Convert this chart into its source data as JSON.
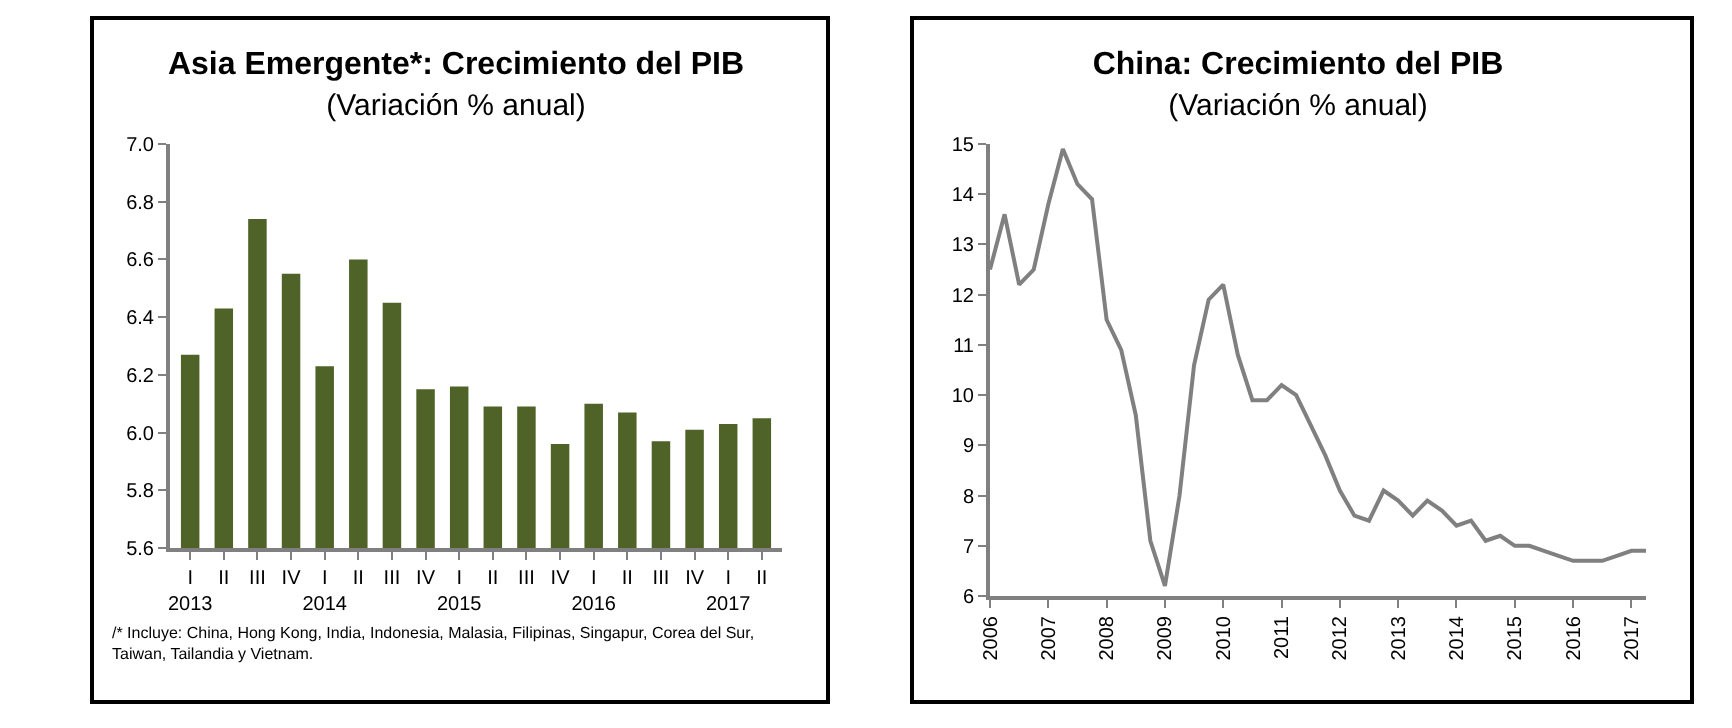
{
  "chart_data": [
    {
      "type": "bar",
      "title": "Asia Emergente*: Crecimiento del PIB",
      "subtitle": "(Variación % anual)",
      "categories": [
        "I\n2013",
        "II",
        "III",
        "IV",
        "I\n2014",
        "II",
        "III",
        "IV",
        "I\n2015",
        "II",
        "III",
        "IV",
        "I\n2016",
        "II",
        "III",
        "IV",
        "I\n2017",
        "II"
      ],
      "values": [
        6.27,
        6.43,
        6.74,
        6.55,
        6.23,
        6.6,
        6.45,
        6.15,
        6.16,
        6.09,
        6.09,
        5.96,
        6.1,
        6.07,
        5.97,
        6.01,
        6.03,
        6.05
      ],
      "color": "#4f6228",
      "ylim": [
        5.6,
        7.0
      ],
      "yticks": [
        5.6,
        5.8,
        {
          "value": 6,
          "label": "6.0"
        },
        6.2,
        6.4,
        6.6,
        6.8,
        {
          "value": 7,
          "label": "7.0"
        }
      ],
      "grid": false,
      "legend": false,
      "annotations": [
        "/* Incluye: China, Hong Kong, India, Indonesia, Malasia, Filipinas, Singapur, Corea del Sur,\nTaiwan, Tailandia y Vietnam."
      ]
    },
    {
      "type": "line",
      "title": "China: Crecimiento del PIB",
      "subtitle": "(Variación % anual)",
      "x": [
        2006,
        2006.25,
        2006.5,
        2006.75,
        2007,
        2007.25,
        2007.5,
        2007.75,
        2008,
        2008.25,
        2008.5,
        2008.75,
        2009,
        2009.25,
        2009.5,
        2009.75,
        2010,
        2010.25,
        2010.5,
        2010.75,
        2011,
        2011.25,
        2011.5,
        2011.75,
        2012,
        2012.25,
        2012.5,
        2012.75,
        2013,
        2013.25,
        2013.5,
        2013.75,
        2014,
        2014.25,
        2014.5,
        2014.75,
        2015,
        2015.25,
        2015.5,
        2015.75,
        2016,
        2016.25,
        2016.5,
        2016.75,
        2017,
        2017.25
      ],
      "values": [
        12.5,
        13.6,
        12.2,
        12.5,
        13.8,
        14.9,
        14.2,
        13.9,
        11.5,
        10.9,
        9.6,
        7.1,
        6.2,
        8.0,
        10.6,
        11.9,
        12.2,
        10.8,
        9.9,
        9.9,
        10.2,
        10.0,
        9.4,
        8.8,
        8.1,
        7.6,
        7.5,
        8.1,
        7.9,
        7.6,
        7.9,
        7.7,
        7.4,
        7.5,
        7.1,
        7.2,
        7.0,
        7.0,
        6.9,
        6.8,
        6.7,
        6.7,
        6.7,
        6.8,
        6.9,
        6.9
      ],
      "color": "#808080",
      "xlim": [
        2006,
        2017.25
      ],
      "xticks": [
        2006,
        2007,
        2008,
        2009,
        2010,
        2011,
        2012,
        2013,
        2014,
        2015,
        2016,
        2017
      ],
      "ylim": [
        6,
        15
      ],
      "yticks": [
        6,
        7,
        8,
        9,
        10,
        11,
        12,
        13,
        14,
        15
      ],
      "grid": false,
      "legend": false,
      "marker": "none",
      "line_style": "solid"
    }
  ]
}
